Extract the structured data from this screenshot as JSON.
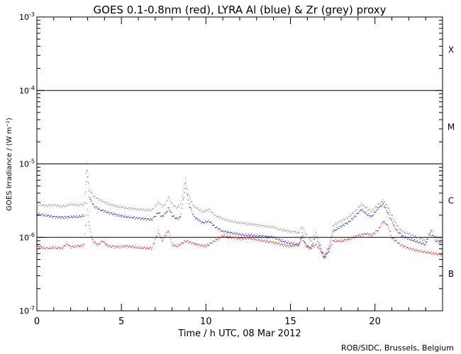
{
  "chart_data": {
    "type": "scatter",
    "title": "GOES 0.1-0.8nm (red), LYRA Al (blue) & Zr (grey) proxy",
    "xlabel": "Time / h UTC, 08 Mar 2012",
    "ylabel": "GOES Irradiance / (W m⁻²)",
    "credit": "ROB/SIDC, Brussels, Belgium",
    "xlim": [
      0,
      24
    ],
    "ylim_log10": [
      -7,
      -3
    ],
    "y_scale": "log",
    "x_ticks": [
      {
        "value": 0,
        "label": "0"
      },
      {
        "value": 5,
        "label": "5"
      },
      {
        "value": 10,
        "label": "10"
      },
      {
        "value": 15,
        "label": "15"
      },
      {
        "value": 20,
        "label": "20"
      }
    ],
    "y_ticks": [
      {
        "exp": -3,
        "base": "10",
        "sup": "-3"
      },
      {
        "exp": -4,
        "base": "10",
        "sup": "-4"
      },
      {
        "exp": -5,
        "base": "10",
        "sup": "-5"
      },
      {
        "exp": -6,
        "base": "10",
        "sup": "-6"
      },
      {
        "exp": -7,
        "base": "10",
        "sup": "-7"
      }
    ],
    "flare_class_lines_log10": [
      -4,
      -5,
      -6
    ],
    "flare_classes": [
      {
        "label": "X",
        "log10": -3.45
      },
      {
        "label": "M",
        "log10": -4.5
      },
      {
        "label": "C",
        "log10": -5.5
      },
      {
        "label": "B",
        "log10": -6.5
      }
    ],
    "series": [
      {
        "name": "LYRA Zr proxy",
        "color": "#808080",
        "points": [
          [
            0.0,
            -5.55
          ],
          [
            0.5,
            -5.57
          ],
          [
            1.0,
            -5.56
          ],
          [
            1.5,
            -5.58
          ],
          [
            2.0,
            -5.55
          ],
          [
            2.5,
            -5.56
          ],
          [
            2.8,
            -5.55
          ],
          [
            2.95,
            -5.0
          ],
          [
            3.1,
            -5.35
          ],
          [
            3.4,
            -5.45
          ],
          [
            3.8,
            -5.5
          ],
          [
            4.3,
            -5.55
          ],
          [
            4.8,
            -5.58
          ],
          [
            5.3,
            -5.6
          ],
          [
            6.0,
            -5.62
          ],
          [
            6.8,
            -5.63
          ],
          [
            7.2,
            -5.52
          ],
          [
            7.4,
            -5.58
          ],
          [
            7.6,
            -5.55
          ],
          [
            7.8,
            -5.45
          ],
          [
            8.0,
            -5.55
          ],
          [
            8.3,
            -5.6
          ],
          [
            8.5,
            -5.55
          ],
          [
            8.8,
            -5.2
          ],
          [
            9.0,
            -5.45
          ],
          [
            9.3,
            -5.58
          ],
          [
            9.8,
            -5.65
          ],
          [
            10.2,
            -5.62
          ],
          [
            10.5,
            -5.7
          ],
          [
            11.0,
            -5.75
          ],
          [
            11.5,
            -5.78
          ],
          [
            12.0,
            -5.8
          ],
          [
            12.5,
            -5.82
          ],
          [
            13.0,
            -5.83
          ],
          [
            13.5,
            -5.85
          ],
          [
            14.0,
            -5.86
          ],
          [
            14.5,
            -5.9
          ],
          [
            15.0,
            -5.92
          ],
          [
            15.5,
            -5.94
          ],
          [
            15.7,
            -5.85
          ],
          [
            15.9,
            -5.95
          ],
          [
            16.2,
            -6.05
          ],
          [
            16.5,
            -5.93
          ],
          [
            16.7,
            -6.05
          ],
          [
            17.0,
            -6.25
          ],
          [
            17.3,
            -6.1
          ],
          [
            17.5,
            -5.85
          ],
          [
            17.8,
            -5.8
          ],
          [
            18.0,
            -5.78
          ],
          [
            18.4,
            -5.73
          ],
          [
            18.8,
            -5.65
          ],
          [
            19.2,
            -5.55
          ],
          [
            19.5,
            -5.6
          ],
          [
            19.8,
            -5.65
          ],
          [
            20.2,
            -5.55
          ],
          [
            20.5,
            -5.5
          ],
          [
            20.8,
            -5.6
          ],
          [
            21.2,
            -5.8
          ],
          [
            21.6,
            -5.92
          ],
          [
            22.0,
            -5.95
          ],
          [
            22.5,
            -6.0
          ],
          [
            23.0,
            -6.05
          ],
          [
            23.3,
            -5.97
          ],
          [
            23.6,
            -6.0
          ],
          [
            24.0,
            -6.02
          ]
        ]
      },
      {
        "name": "LYRA Al proxy",
        "color": "#0000cc",
        "points": [
          [
            0.0,
            -5.68
          ],
          [
            0.5,
            -5.7
          ],
          [
            1.0,
            -5.72
          ],
          [
            1.5,
            -5.73
          ],
          [
            2.0,
            -5.72
          ],
          [
            2.5,
            -5.72
          ],
          [
            2.8,
            -5.7
          ],
          [
            2.95,
            -5.08
          ],
          [
            3.1,
            -5.45
          ],
          [
            3.4,
            -5.58
          ],
          [
            3.8,
            -5.63
          ],
          [
            4.3,
            -5.67
          ],
          [
            4.8,
            -5.7
          ],
          [
            5.3,
            -5.72
          ],
          [
            6.0,
            -5.74
          ],
          [
            6.8,
            -5.76
          ],
          [
            7.2,
            -5.66
          ],
          [
            7.4,
            -5.72
          ],
          [
            7.6,
            -5.68
          ],
          [
            7.8,
            -5.6
          ],
          [
            8.0,
            -5.7
          ],
          [
            8.3,
            -5.75
          ],
          [
            8.5,
            -5.72
          ],
          [
            8.8,
            -5.28
          ],
          [
            9.0,
            -5.55
          ],
          [
            9.3,
            -5.72
          ],
          [
            9.8,
            -5.8
          ],
          [
            10.2,
            -5.78
          ],
          [
            10.5,
            -5.85
          ],
          [
            11.0,
            -5.92
          ],
          [
            11.5,
            -5.94
          ],
          [
            12.0,
            -5.96
          ],
          [
            12.5,
            -5.97
          ],
          [
            13.0,
            -5.98
          ],
          [
            13.5,
            -5.99
          ],
          [
            14.0,
            -6.0
          ],
          [
            14.5,
            -6.05
          ],
          [
            15.0,
            -6.08
          ],
          [
            15.5,
            -6.1
          ],
          [
            15.7,
            -5.95
          ],
          [
            15.9,
            -6.1
          ],
          [
            16.2,
            -6.15
          ],
          [
            16.5,
            -5.98
          ],
          [
            16.7,
            -6.1
          ],
          [
            17.0,
            -6.28
          ],
          [
            17.3,
            -6.15
          ],
          [
            17.5,
            -5.92
          ],
          [
            17.8,
            -5.88
          ],
          [
            18.0,
            -5.85
          ],
          [
            18.4,
            -5.8
          ],
          [
            18.8,
            -5.72
          ],
          [
            19.2,
            -5.62
          ],
          [
            19.5,
            -5.68
          ],
          [
            19.8,
            -5.72
          ],
          [
            20.2,
            -5.6
          ],
          [
            20.5,
            -5.55
          ],
          [
            20.8,
            -5.68
          ],
          [
            21.2,
            -5.88
          ],
          [
            21.6,
            -5.98
          ],
          [
            22.0,
            -6.02
          ],
          [
            22.5,
            -6.06
          ],
          [
            23.0,
            -6.1
          ],
          [
            23.3,
            -5.9
          ],
          [
            23.6,
            -6.05
          ],
          [
            24.0,
            -6.08
          ]
        ]
      },
      {
        "name": "GOES 0.1-0.8nm",
        "color": "#dd0000",
        "points": [
          [
            0.0,
            -6.12
          ],
          [
            0.5,
            -6.15
          ],
          [
            1.0,
            -6.14
          ],
          [
            1.5,
            -6.15
          ],
          [
            1.8,
            -6.08
          ],
          [
            2.0,
            -6.13
          ],
          [
            2.5,
            -6.12
          ],
          [
            2.8,
            -6.1
          ],
          [
            2.95,
            -5.55
          ],
          [
            3.1,
            -5.85
          ],
          [
            3.3,
            -6.05
          ],
          [
            3.6,
            -6.1
          ],
          [
            3.9,
            -6.05
          ],
          [
            4.2,
            -6.12
          ],
          [
            4.8,
            -6.13
          ],
          [
            5.3,
            -6.12
          ],
          [
            6.0,
            -6.14
          ],
          [
            6.8,
            -6.15
          ],
          [
            7.2,
            -5.92
          ],
          [
            7.4,
            -6.05
          ],
          [
            7.8,
            -5.9
          ],
          [
            8.0,
            -6.1
          ],
          [
            8.3,
            -6.12
          ],
          [
            8.8,
            -6.05
          ],
          [
            9.2,
            -6.08
          ],
          [
            9.5,
            -6.1
          ],
          [
            10.0,
            -6.12
          ],
          [
            10.5,
            -6.05
          ],
          [
            11.0,
            -5.98
          ],
          [
            11.5,
            -6.0
          ],
          [
            12.0,
            -6.02
          ],
          [
            12.5,
            -6.01
          ],
          [
            13.0,
            -6.03
          ],
          [
            13.5,
            -6.05
          ],
          [
            14.0,
            -6.07
          ],
          [
            14.5,
            -6.1
          ],
          [
            15.0,
            -6.12
          ],
          [
            15.5,
            -6.1
          ],
          [
            15.7,
            -6.0
          ],
          [
            15.9,
            -6.12
          ],
          [
            16.2,
            -6.15
          ],
          [
            16.5,
            -6.1
          ],
          [
            16.7,
            -6.15
          ],
          [
            17.0,
            -6.28
          ],
          [
            17.3,
            -6.18
          ],
          [
            17.5,
            -6.05
          ],
          [
            18.0,
            -6.05
          ],
          [
            18.5,
            -6.02
          ],
          [
            19.0,
            -5.98
          ],
          [
            19.5,
            -5.95
          ],
          [
            19.8,
            -5.97
          ],
          [
            20.2,
            -5.9
          ],
          [
            20.5,
            -5.78
          ],
          [
            20.8,
            -5.85
          ],
          [
            21.0,
            -6.0
          ],
          [
            21.5,
            -6.1
          ],
          [
            22.0,
            -6.15
          ],
          [
            22.5,
            -6.18
          ],
          [
            23.0,
            -6.2
          ],
          [
            23.5,
            -6.22
          ],
          [
            24.0,
            -6.24
          ]
        ]
      }
    ]
  }
}
